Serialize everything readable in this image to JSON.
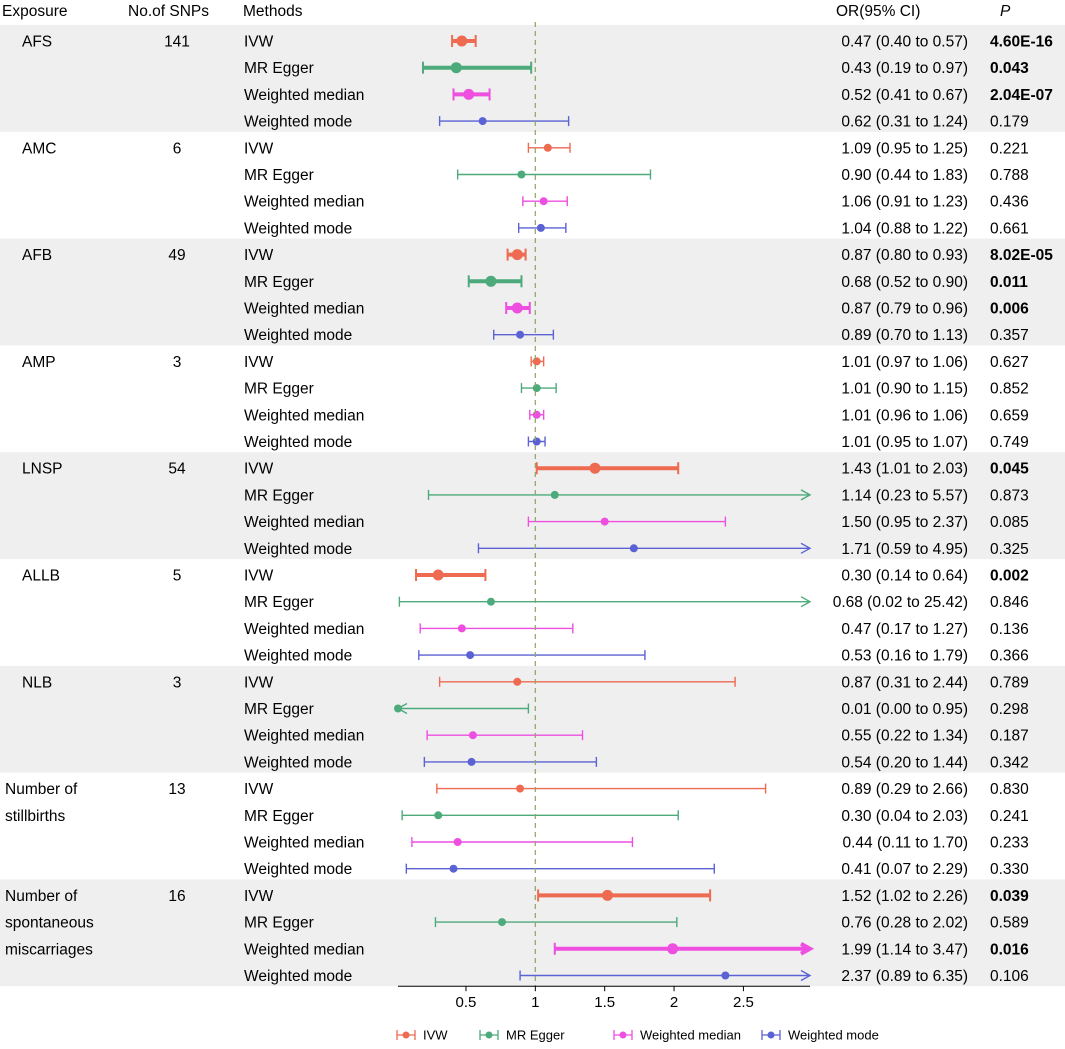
{
  "header": {
    "exposure": "Exposure",
    "snps": "No.of SNPs",
    "methods": "Methods",
    "or": "OR(95% CI)",
    "p": "P"
  },
  "colors": {
    "IVW": "#ee6a50",
    "MR Egger": "#4daa7a",
    "Weighted median": "#ee4fe0",
    "Weighted mode": "#5b62d4",
    "shade": "#efefef",
    "refline": "#8aa55f"
  },
  "chart_data": {
    "type": "forest",
    "reference_line": 1,
    "x_ticks": [
      0.5,
      1,
      1.5,
      2,
      2.5
    ],
    "x_tick_labels": [
      "0.5",
      "1",
      "1.5",
      "2",
      "2.5"
    ],
    "xlim": [
      0.01,
      2.98
    ],
    "legend": [
      "IVW",
      "MR Egger",
      "Weighted median",
      "Weighted mode"
    ],
    "legend_position": "bottom",
    "groups": [
      {
        "exposure": [
          "AFS"
        ],
        "snps": "141",
        "shaded": true,
        "rows": [
          {
            "method": "IVW",
            "or": 0.47,
            "lo": 0.4,
            "hi": 0.57,
            "label": "0.47 (0.40 to 0.57)",
            "p": "4.60E-16",
            "sig": true
          },
          {
            "method": "MR Egger",
            "or": 0.43,
            "lo": 0.19,
            "hi": 0.97,
            "label": "0.43 (0.19 to 0.97)",
            "p": "0.043",
            "sig": true
          },
          {
            "method": "Weighted median",
            "or": 0.52,
            "lo": 0.41,
            "hi": 0.67,
            "label": "0.52 (0.41 to 0.67)",
            "p": "2.04E-07",
            "sig": true
          },
          {
            "method": "Weighted mode",
            "or": 0.62,
            "lo": 0.31,
            "hi": 1.24,
            "label": "0.62 (0.31 to 1.24)",
            "p": "0.179",
            "sig": false
          }
        ]
      },
      {
        "exposure": [
          "AMC"
        ],
        "snps": "6",
        "shaded": false,
        "rows": [
          {
            "method": "IVW",
            "or": 1.09,
            "lo": 0.95,
            "hi": 1.25,
            "label": "1.09 (0.95 to 1.25)",
            "p": "0.221",
            "sig": false
          },
          {
            "method": "MR Egger",
            "or": 0.9,
            "lo": 0.44,
            "hi": 1.83,
            "label": "0.90 (0.44 to 1.83)",
            "p": "0.788",
            "sig": false
          },
          {
            "method": "Weighted median",
            "or": 1.06,
            "lo": 0.91,
            "hi": 1.23,
            "label": "1.06 (0.91 to 1.23)",
            "p": "0.436",
            "sig": false
          },
          {
            "method": "Weighted mode",
            "or": 1.04,
            "lo": 0.88,
            "hi": 1.22,
            "label": "1.04 (0.88 to 1.22)",
            "p": "0.661",
            "sig": false
          }
        ]
      },
      {
        "exposure": [
          "AFB"
        ],
        "snps": "49",
        "shaded": true,
        "rows": [
          {
            "method": "IVW",
            "or": 0.87,
            "lo": 0.8,
            "hi": 0.93,
            "label": "0.87 (0.80 to 0.93)",
            "p": "8.02E-05",
            "sig": true
          },
          {
            "method": "MR Egger",
            "or": 0.68,
            "lo": 0.52,
            "hi": 0.9,
            "label": "0.68 (0.52 to 0.90)",
            "p": "0.011",
            "sig": true
          },
          {
            "method": "Weighted median",
            "or": 0.87,
            "lo": 0.79,
            "hi": 0.96,
            "label": "0.87 (0.79 to 0.96)",
            "p": "0.006",
            "sig": true
          },
          {
            "method": "Weighted mode",
            "or": 0.89,
            "lo": 0.7,
            "hi": 1.13,
            "label": "0.89 (0.70 to 1.13)",
            "p": "0.357",
            "sig": false
          }
        ]
      },
      {
        "exposure": [
          "AMP"
        ],
        "snps": "3",
        "shaded": false,
        "rows": [
          {
            "method": "IVW",
            "or": 1.01,
            "lo": 0.97,
            "hi": 1.06,
            "label": "1.01 (0.97 to 1.06)",
            "p": "0.627",
            "sig": false
          },
          {
            "method": "MR Egger",
            "or": 1.01,
            "lo": 0.9,
            "hi": 1.15,
            "label": "1.01 (0.90 to 1.15)",
            "p": "0.852",
            "sig": false
          },
          {
            "method": "Weighted median",
            "or": 1.01,
            "lo": 0.96,
            "hi": 1.06,
            "label": "1.01 (0.96 to 1.06)",
            "p": "0.659",
            "sig": false
          },
          {
            "method": "Weighted mode",
            "or": 1.01,
            "lo": 0.95,
            "hi": 1.07,
            "label": "1.01 (0.95 to 1.07)",
            "p": "0.749",
            "sig": false
          }
        ]
      },
      {
        "exposure": [
          "LNSP"
        ],
        "snps": "54",
        "shaded": true,
        "rows": [
          {
            "method": "IVW",
            "or": 1.43,
            "lo": 1.01,
            "hi": 2.03,
            "label": "1.43 (1.01 to 2.03)",
            "p": "0.045",
            "sig": true
          },
          {
            "method": "MR Egger",
            "or": 1.14,
            "lo": 0.23,
            "hi": 5.57,
            "label": "1.14 (0.23 to 5.57)",
            "p": "0.873",
            "sig": false
          },
          {
            "method": "Weighted median",
            "or": 1.5,
            "lo": 0.95,
            "hi": 2.37,
            "label": "1.50 (0.95 to 2.37)",
            "p": "0.085",
            "sig": false
          },
          {
            "method": "Weighted mode",
            "or": 1.71,
            "lo": 0.59,
            "hi": 4.95,
            "label": "1.71 (0.59 to 4.95)",
            "p": "0.325",
            "sig": false
          }
        ]
      },
      {
        "exposure": [
          "ALLB"
        ],
        "snps": "5",
        "shaded": false,
        "rows": [
          {
            "method": "IVW",
            "or": 0.3,
            "lo": 0.14,
            "hi": 0.64,
            "label": "0.30 (0.14 to 0.64)",
            "p": "0.002",
            "sig": true
          },
          {
            "method": "MR Egger",
            "or": 0.68,
            "lo": 0.02,
            "hi": 25.42,
            "label": "0.68 (0.02 to 25.42)",
            "p": "0.846",
            "sig": false
          },
          {
            "method": "Weighted median",
            "or": 0.47,
            "lo": 0.17,
            "hi": 1.27,
            "label": "0.47 (0.17 to 1.27)",
            "p": "0.136",
            "sig": false
          },
          {
            "method": "Weighted mode",
            "or": 0.53,
            "lo": 0.16,
            "hi": 1.79,
            "label": "0.53 (0.16 to 1.79)",
            "p": "0.366",
            "sig": false
          }
        ]
      },
      {
        "exposure": [
          "NLB"
        ],
        "snps": "3",
        "shaded": true,
        "rows": [
          {
            "method": "IVW",
            "or": 0.87,
            "lo": 0.31,
            "hi": 2.44,
            "label": "0.87 (0.31 to 2.44)",
            "p": "0.789",
            "sig": false
          },
          {
            "method": "MR Egger",
            "or": 0.01,
            "lo": 0.0,
            "hi": 0.95,
            "label": "0.01 (0.00 to 0.95)",
            "p": "0.298",
            "sig": false
          },
          {
            "method": "Weighted median",
            "or": 0.55,
            "lo": 0.22,
            "hi": 1.34,
            "label": "0.55 (0.22 to 1.34)",
            "p": "0.187",
            "sig": false
          },
          {
            "method": "Weighted mode",
            "or": 0.54,
            "lo": 0.2,
            "hi": 1.44,
            "label": "0.54 (0.20 to 1.44)",
            "p": "0.342",
            "sig": false
          }
        ]
      },
      {
        "exposure": [
          "Number of",
          "stillbirths"
        ],
        "snps": "13",
        "shaded": false,
        "rows": [
          {
            "method": "IVW",
            "or": 0.89,
            "lo": 0.29,
            "hi": 2.66,
            "label": "0.89 (0.29 to 2.66)",
            "p": "0.830",
            "sig": false
          },
          {
            "method": "MR Egger",
            "or": 0.3,
            "lo": 0.04,
            "hi": 2.03,
            "label": "0.30 (0.04 to 2.03)",
            "p": "0.241",
            "sig": false
          },
          {
            "method": "Weighted median",
            "or": 0.44,
            "lo": 0.11,
            "hi": 1.7,
            "label": "0.44 (0.11 to 1.70)",
            "p": "0.233",
            "sig": false
          },
          {
            "method": "Weighted mode",
            "or": 0.41,
            "lo": 0.07,
            "hi": 2.29,
            "label": "0.41 (0.07 to 2.29)",
            "p": "0.330",
            "sig": false
          }
        ]
      },
      {
        "exposure": [
          "Number of",
          "spontaneous",
          "miscarriages"
        ],
        "snps": "16",
        "shaded": true,
        "rows": [
          {
            "method": "IVW",
            "or": 1.52,
            "lo": 1.02,
            "hi": 2.26,
            "label": "1.52 (1.02 to 2.26)",
            "p": "0.039",
            "sig": true
          },
          {
            "method": "MR Egger",
            "or": 0.76,
            "lo": 0.28,
            "hi": 2.02,
            "label": "0.76 (0.28 to 2.02)",
            "p": "0.589",
            "sig": false
          },
          {
            "method": "Weighted median",
            "or": 1.99,
            "lo": 1.14,
            "hi": 3.47,
            "label": "1.99 (1.14 to 3.47)",
            "p": "0.016",
            "sig": true
          },
          {
            "method": "Weighted mode",
            "or": 2.37,
            "lo": 0.89,
            "hi": 6.35,
            "label": "2.37 (0.89 to 6.35)",
            "p": "0.106",
            "sig": false
          }
        ]
      }
    ]
  }
}
